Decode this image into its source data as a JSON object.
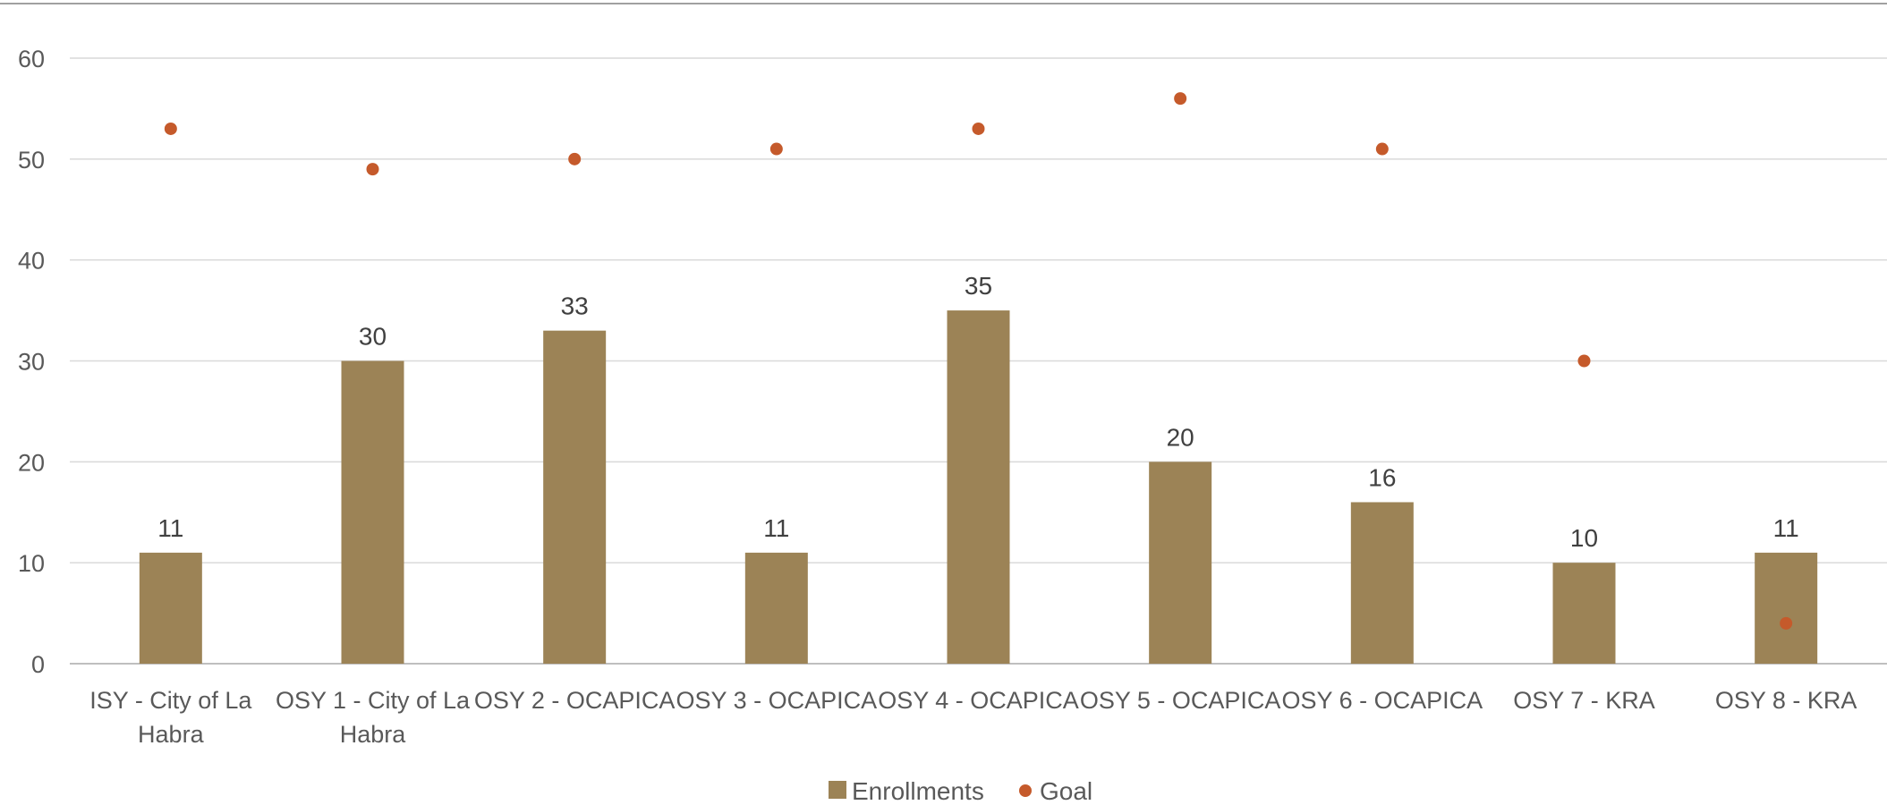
{
  "chart_data": {
    "type": "bar",
    "title": "",
    "xlabel": "",
    "ylabel": "",
    "ylim": [
      0,
      60
    ],
    "y_ticks": [
      "0",
      "10",
      "20",
      "30",
      "40",
      "50",
      "60"
    ],
    "grid": true,
    "legend_position": "bottom-center",
    "categories": [
      "ISY - City of La Habra",
      "OSY 1 - City of La Habra",
      "OSY 2 - OCAPICA",
      "OSY 3 - OCAPICA",
      "OSY 4 - OCAPICA",
      "OSY 5 - OCAPICA",
      "OSY 6 - OCAPICA",
      "OSY 7 - KRA",
      "OSY 8 - KRA"
    ],
    "category_label_lines": [
      [
        "ISY - City of La",
        "Habra"
      ],
      [
        "OSY 1 - City of La",
        "Habra"
      ],
      [
        "OSY 2 - OCAPICA"
      ],
      [
        "OSY 3 - OCAPICA"
      ],
      [
        "OSY 4 - OCAPICA"
      ],
      [
        "OSY 5 - OCAPICA"
      ],
      [
        "OSY 6 - OCAPICA"
      ],
      [
        "OSY 7 - KRA"
      ],
      [
        "OSY 8 - KRA"
      ]
    ],
    "series": [
      {
        "name": "Enrollments",
        "type": "bar",
        "color": "#9C8356",
        "values": [
          11,
          30,
          33,
          11,
          35,
          20,
          16,
          10,
          11
        ],
        "data_labels": [
          "11",
          "30",
          "33",
          "11",
          "35",
          "20",
          "16",
          "10",
          "11"
        ]
      },
      {
        "name": "Goal",
        "type": "scatter",
        "color": "#C55A2B",
        "values": [
          53,
          49,
          50,
          51,
          53,
          56,
          51,
          30,
          4
        ]
      }
    ]
  },
  "colors": {
    "gridline": "#D9D9D9",
    "axis_line": "#BFBFBF",
    "top_border": "#808080"
  }
}
